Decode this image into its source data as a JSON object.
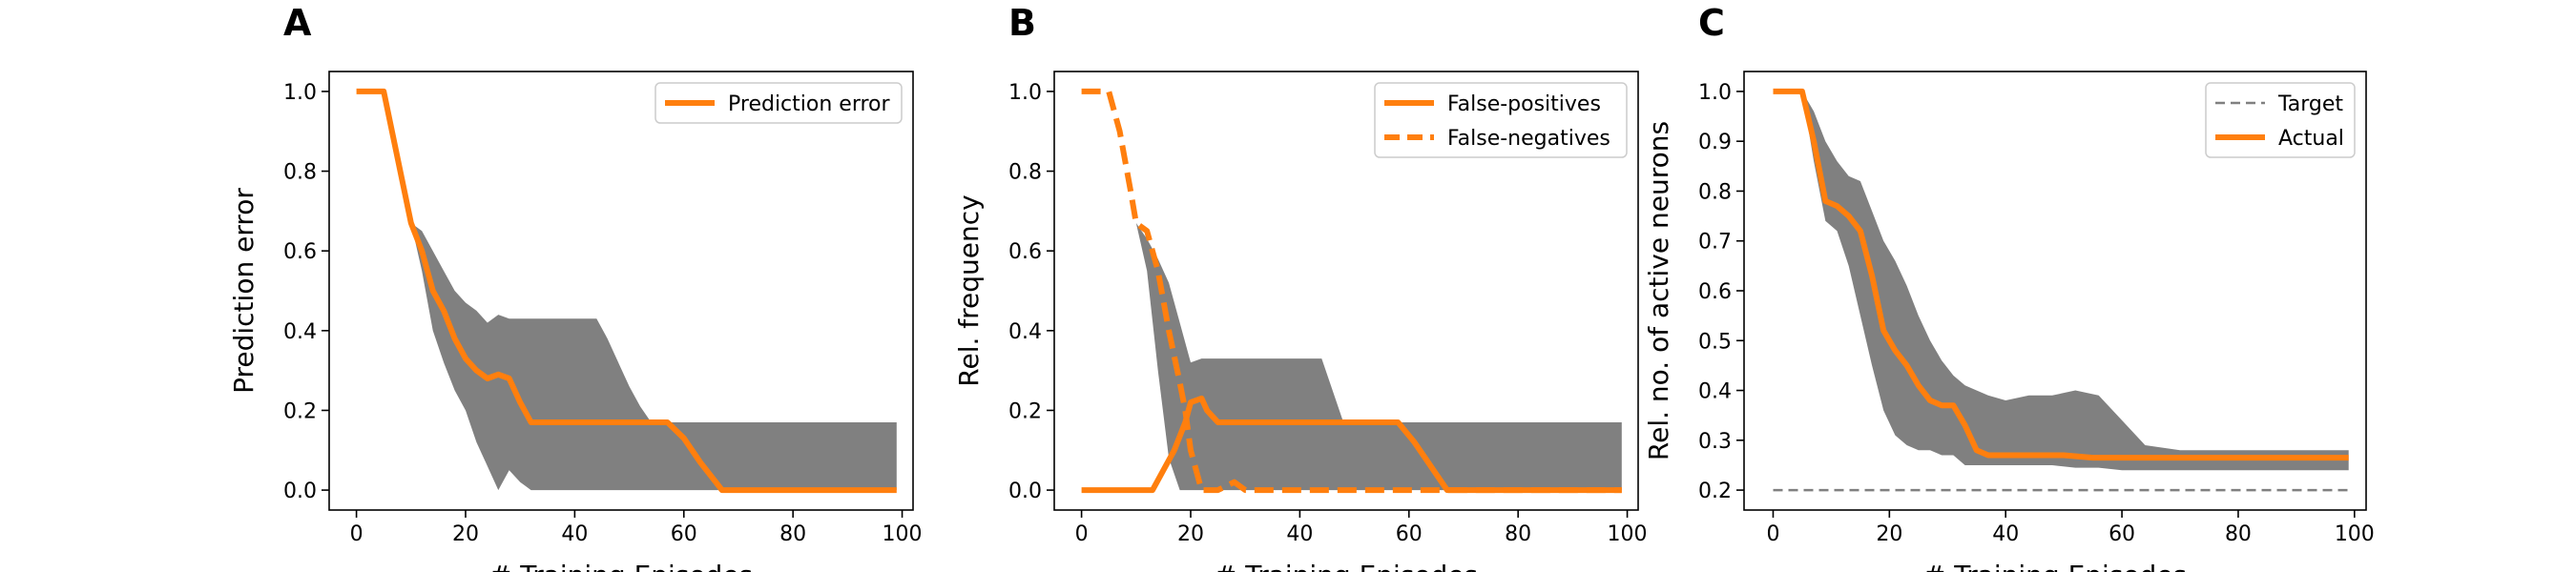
{
  "colors": {
    "line": "#ff7f0e",
    "band": "#808080",
    "target": "#808080"
  },
  "chart_data": [
    {
      "panel": "A",
      "type": "line",
      "xlabel": "# Training Episodes",
      "ylabel": "Prediction error",
      "xlim": [
        -5,
        102
      ],
      "ylim": [
        -0.05,
        1.05
      ],
      "xticks": [
        0,
        20,
        40,
        60,
        80,
        100
      ],
      "yticks": [
        0.0,
        0.2,
        0.4,
        0.6,
        0.8,
        1.0
      ],
      "ytick_labels": [
        "0.0",
        "0.2",
        "0.4",
        "0.6",
        "0.8",
        "1.0"
      ],
      "legend": "top-right",
      "series": [
        {
          "name": "Prediction error",
          "style": "solid",
          "x": [
            0,
            5,
            10,
            12,
            14,
            16,
            18,
            20,
            22,
            24,
            26,
            28,
            30,
            32,
            36,
            40,
            50,
            57,
            60,
            63,
            67,
            80,
            99
          ],
          "y": [
            1.0,
            1.0,
            0.67,
            0.6,
            0.5,
            0.45,
            0.38,
            0.33,
            0.3,
            0.28,
            0.29,
            0.28,
            0.22,
            0.17,
            0.17,
            0.17,
            0.17,
            0.17,
            0.13,
            0.07,
            0.0,
            0.0,
            0.0
          ]
        }
      ],
      "band": {
        "x": [
          10,
          12,
          14,
          16,
          18,
          20,
          22,
          24,
          26,
          28,
          30,
          32,
          34,
          36,
          38,
          40,
          42,
          44,
          46,
          48,
          50,
          52,
          54,
          56,
          58,
          60,
          62,
          64,
          66,
          68,
          70,
          80,
          90,
          99
        ],
        "upper": [
          0.67,
          0.65,
          0.6,
          0.55,
          0.5,
          0.47,
          0.45,
          0.42,
          0.44,
          0.43,
          0.43,
          0.43,
          0.43,
          0.43,
          0.43,
          0.43,
          0.43,
          0.43,
          0.38,
          0.32,
          0.26,
          0.21,
          0.17,
          0.17,
          0.17,
          0.17,
          0.17,
          0.17,
          0.17,
          0.17,
          0.17,
          0.17,
          0.17,
          0.17
        ],
        "lower": [
          0.67,
          0.55,
          0.4,
          0.32,
          0.25,
          0.2,
          0.12,
          0.06,
          0.0,
          0.05,
          0.02,
          0.0,
          0.0,
          0.0,
          0.0,
          0.0,
          0.0,
          0.0,
          0.0,
          0.0,
          0.0,
          0.0,
          0.0,
          0.0,
          0.0,
          0.0,
          0.0,
          0.0,
          0.0,
          0.0,
          0.0,
          0.0,
          0.0,
          0.0
        ]
      }
    },
    {
      "panel": "B",
      "type": "line",
      "xlabel": "# Training Episodes",
      "ylabel": "Rel. frequency",
      "xlim": [
        -5,
        102
      ],
      "ylim": [
        -0.05,
        1.05
      ],
      "xticks": [
        0,
        20,
        40,
        60,
        80,
        100
      ],
      "yticks": [
        0.0,
        0.2,
        0.4,
        0.6,
        0.8,
        1.0
      ],
      "ytick_labels": [
        "0.0",
        "0.2",
        "0.4",
        "0.6",
        "0.8",
        "1.0"
      ],
      "legend": "top-right",
      "series": [
        {
          "name": "False-positives",
          "style": "solid",
          "x": [
            0,
            13,
            15,
            17,
            19,
            20,
            22,
            23,
            25,
            30,
            40,
            50,
            58,
            61,
            63,
            65,
            67,
            80,
            99
          ],
          "y": [
            0.0,
            0.0,
            0.05,
            0.1,
            0.17,
            0.22,
            0.23,
            0.2,
            0.17,
            0.17,
            0.17,
            0.17,
            0.17,
            0.12,
            0.08,
            0.04,
            0.0,
            0.0,
            0.0
          ]
        },
        {
          "name": "False-negatives",
          "style": "dashed",
          "x": [
            0,
            5,
            7,
            9,
            10,
            12,
            14,
            16,
            18,
            19,
            20,
            21,
            22,
            25,
            28,
            30,
            35,
            99
          ],
          "y": [
            1.0,
            1.0,
            0.9,
            0.75,
            0.67,
            0.65,
            0.55,
            0.4,
            0.27,
            0.2,
            0.1,
            0.05,
            0.0,
            0.0,
            0.02,
            0.0,
            0.0,
            0.0
          ]
        }
      ],
      "band": {
        "x": [
          10,
          12,
          14,
          16,
          18,
          20,
          22,
          24,
          26,
          28,
          30,
          32,
          34,
          40,
          44,
          46,
          48,
          50,
          60,
          70,
          80,
          90,
          99
        ],
        "upper": [
          0.67,
          0.63,
          0.58,
          0.52,
          0.42,
          0.32,
          0.33,
          0.33,
          0.33,
          0.33,
          0.33,
          0.33,
          0.33,
          0.33,
          0.33,
          0.25,
          0.17,
          0.17,
          0.17,
          0.17,
          0.17,
          0.17,
          0.17
        ],
        "lower": [
          0.67,
          0.55,
          0.3,
          0.08,
          0.0,
          0.0,
          0.0,
          0.0,
          0.0,
          0.0,
          0.0,
          0.0,
          0.0,
          0.0,
          0.0,
          0.0,
          0.0,
          0.0,
          0.0,
          0.0,
          0.0,
          0.0,
          0.0
        ]
      }
    },
    {
      "panel": "C",
      "type": "line",
      "xlabel": "# Training Episodes",
      "ylabel": "Rel. no. of active neurons",
      "xlim": [
        -5,
        102
      ],
      "ylim": [
        0.16,
        1.04
      ],
      "xticks": [
        0,
        20,
        40,
        60,
        80,
        100
      ],
      "yticks": [
        0.2,
        0.3,
        0.4,
        0.5,
        0.6,
        0.7,
        0.8,
        0.9,
        1.0
      ],
      "ytick_labels": [
        "0.2",
        "0.3",
        "0.4",
        "0.5",
        "0.6",
        "0.7",
        "0.8",
        "0.9",
        "1.0"
      ],
      "legend": "top-right",
      "series": [
        {
          "name": "Target",
          "style": "dashed-thin",
          "x": [
            0,
            99
          ],
          "y": [
            0.2,
            0.2
          ]
        },
        {
          "name": "Actual",
          "style": "solid",
          "x": [
            0,
            5,
            7,
            9,
            11,
            13,
            15,
            17,
            19,
            21,
            23,
            25,
            27,
            29,
            31,
            33,
            35,
            37,
            40,
            50,
            55,
            60,
            70,
            80,
            99
          ],
          "y": [
            1.0,
            1.0,
            0.9,
            0.78,
            0.77,
            0.75,
            0.72,
            0.63,
            0.52,
            0.48,
            0.45,
            0.41,
            0.38,
            0.37,
            0.37,
            0.33,
            0.28,
            0.27,
            0.27,
            0.27,
            0.265,
            0.265,
            0.265,
            0.265,
            0.265
          ]
        }
      ],
      "band": {
        "x": [
          5,
          7,
          9,
          11,
          13,
          15,
          17,
          19,
          21,
          23,
          25,
          27,
          29,
          31,
          33,
          35,
          37,
          40,
          44,
          48,
          52,
          56,
          60,
          64,
          70,
          80,
          99
        ],
        "upper": [
          1.0,
          0.96,
          0.9,
          0.86,
          0.83,
          0.82,
          0.76,
          0.7,
          0.66,
          0.61,
          0.55,
          0.5,
          0.46,
          0.43,
          0.41,
          0.4,
          0.39,
          0.38,
          0.39,
          0.39,
          0.4,
          0.39,
          0.34,
          0.29,
          0.28,
          0.28,
          0.28
        ],
        "lower": [
          1.0,
          0.86,
          0.74,
          0.72,
          0.65,
          0.55,
          0.45,
          0.36,
          0.31,
          0.29,
          0.28,
          0.28,
          0.27,
          0.27,
          0.25,
          0.25,
          0.25,
          0.25,
          0.25,
          0.25,
          0.245,
          0.245,
          0.24,
          0.24,
          0.24,
          0.24,
          0.24
        ]
      }
    }
  ]
}
